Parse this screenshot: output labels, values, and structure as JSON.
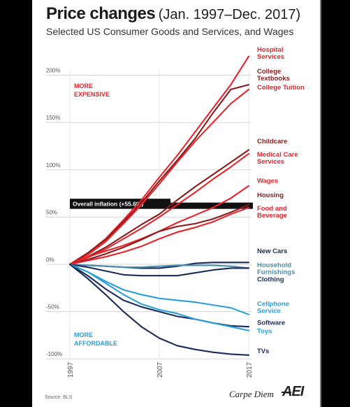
{
  "header": {
    "title": "Price changes",
    "period": "(Jan. 1997–Dec. 2017)",
    "subtitle": "Selected US Consumer Goods and Services, and Wages"
  },
  "footer": {
    "source": "Source: BLS",
    "brand": "Carpe Diem",
    "logo": "AEI"
  },
  "chart_data": {
    "type": "line",
    "x": [
      1997,
      1999,
      2001,
      2003,
      2005,
      2007,
      2009,
      2011,
      2013,
      2015,
      2017
    ],
    "xticks": [
      "1997",
      "2007",
      "2017"
    ],
    "yticks": [
      "200%",
      "150%",
      "100%",
      "50%",
      "0%",
      "-50%",
      "-100%"
    ],
    "ylim": [
      -100,
      225
    ],
    "grid": true,
    "annotations": {
      "more_expensive": "MORE\nEXPENSIVE",
      "more_affordable": "MORE\nAFFORDABLE",
      "inflation_label": "Overall inflation (+55.6%)",
      "inflation_value": 62
    },
    "colors": {
      "red": "#e8232a",
      "darkred": "#8b1a1a",
      "navy": "#1a2c5b",
      "blue": "#2a9fd8",
      "teal": "#4a90b0"
    },
    "series": [
      {
        "name": "Hospital Services",
        "color": "#e8232a",
        "values": [
          0,
          12,
          27,
          47,
          68,
          92,
          115,
          140,
          165,
          190,
          220
        ]
      },
      {
        "name": "College Textbooks",
        "color": "#8b1a1a",
        "values": [
          0,
          12,
          26,
          45,
          65,
          88,
          110,
          133,
          160,
          185,
          190
        ]
      },
      {
        "name": "College Tuition",
        "color": "#e8232a",
        "values": [
          0,
          10,
          24,
          43,
          63,
          85,
          108,
          130,
          150,
          170,
          185
        ]
      },
      {
        "name": "Childcare",
        "color": "#8b1a1a",
        "values": [
          0,
          8,
          18,
          30,
          42,
          53,
          68,
          82,
          95,
          108,
          121
        ]
      },
      {
        "name": "Medical Care Services",
        "color": "#e8232a",
        "values": [
          0,
          7,
          16,
          27,
          38,
          50,
          63,
          76,
          90,
          103,
          117
        ]
      },
      {
        "name": "Wages",
        "color": "#e8232a",
        "values": [
          0,
          8,
          14,
          20,
          27,
          35,
          44,
          52,
          60,
          70,
          83
        ]
      },
      {
        "name": "Housing",
        "color": "#8b1a1a",
        "values": [
          0,
          5,
          11,
          18,
          26,
          35,
          40,
          43,
          48,
          55,
          63
        ]
      },
      {
        "name": "Food and Beverage",
        "color": "#e8232a",
        "values": [
          0,
          4,
          8,
          13,
          19,
          27,
          34,
          39,
          45,
          53,
          60
        ]
      },
      {
        "name": "New Cars",
        "color": "#1a2c5b",
        "values": [
          0,
          -1,
          -2,
          -3,
          -4,
          -4,
          -2,
          1,
          2,
          2,
          2
        ]
      },
      {
        "name": "Household Furnishings",
        "color": "#4a90b0",
        "values": [
          0,
          -1,
          -2,
          -3,
          -3,
          -2,
          -1,
          -1,
          -1,
          -2,
          -4
        ]
      },
      {
        "name": "Clothing",
        "color": "#1a2c5b",
        "values": [
          0,
          -3,
          -7,
          -11,
          -12,
          -12,
          -12,
          -9,
          -6,
          -4,
          -4
        ]
      },
      {
        "name": "Cellphone Service",
        "color": "#2a9fd8",
        "values": [
          0,
          -8,
          -18,
          -27,
          -32,
          -36,
          -38,
          -40,
          -43,
          -46,
          -53
        ]
      },
      {
        "name": "Software",
        "color": "#1a2c5b",
        "values": [
          0,
          -12,
          -26,
          -38,
          -45,
          -50,
          -55,
          -58,
          -62,
          -65,
          -66
        ]
      },
      {
        "name": "Toys",
        "color": "#2a9fd8",
        "values": [
          0,
          -8,
          -20,
          -32,
          -42,
          -48,
          -52,
          -58,
          -62,
          -66,
          -70
        ]
      },
      {
        "name": "TVs",
        "color": "#1a2c5b",
        "values": [
          0,
          -15,
          -32,
          -50,
          -66,
          -78,
          -86,
          -90,
          -93,
          -95,
          -96
        ]
      }
    ],
    "end_labels": [
      {
        "text": "Hospital\nServices",
        "color": "#e8232a",
        "value": 225
      },
      {
        "text": "College\nTextbooks",
        "color": "#8b1a1a",
        "value": 202
      },
      {
        "text": "College Tuition",
        "color": "#e8232a",
        "value": 185
      },
      {
        "text": "Childcare",
        "color": "#8b1a1a",
        "value": 128
      },
      {
        "text": "Medical Care\nServices",
        "color": "#e8232a",
        "value": 114
      },
      {
        "text": "Wages",
        "color": "#e8232a",
        "value": 86
      },
      {
        "text": "Housing",
        "color": "#8b1a1a",
        "value": 71
      },
      {
        "text": "Food and\nBeverage",
        "color": "#e8232a",
        "value": 57
      },
      {
        "text": "New Cars",
        "color": "#1a2c5b",
        "value": 12
      },
      {
        "text": "Household\nFurnishings",
        "color": "#4a90b0",
        "value": -3
      },
      {
        "text": "Clothing",
        "color": "#1a2c5b",
        "value": -18
      },
      {
        "text": "Cellphone\nService",
        "color": "#2a9fd8",
        "value": -44
      },
      {
        "text": "Software",
        "color": "#1a2c5b",
        "value": -64
      },
      {
        "text": "Toys",
        "color": "#2a9fd8",
        "value": -73
      },
      {
        "text": "TVs",
        "color": "#1a2c5b",
        "value": -94
      }
    ]
  }
}
